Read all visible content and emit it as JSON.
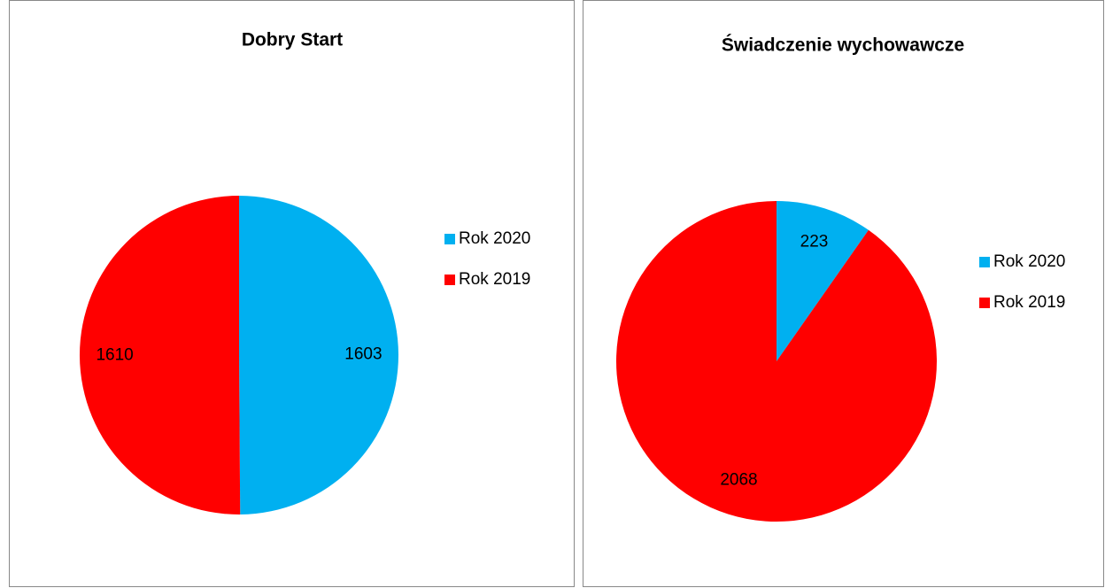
{
  "chart_data": [
    {
      "type": "pie",
      "title": "Dobry Start",
      "categories": [
        "Rok 2020",
        "Rok 2019"
      ],
      "values": [
        1603,
        1610
      ],
      "colors": [
        "#00B0F0",
        "#FF0000"
      ],
      "legend": "right"
    },
    {
      "type": "pie",
      "title": "Świadczenie wychowawcze",
      "categories": [
        "Rok 2020",
        "Rok 2019"
      ],
      "values": [
        223,
        2068
      ],
      "colors": [
        "#00B0F0",
        "#FF0000"
      ],
      "legend": "right"
    }
  ]
}
